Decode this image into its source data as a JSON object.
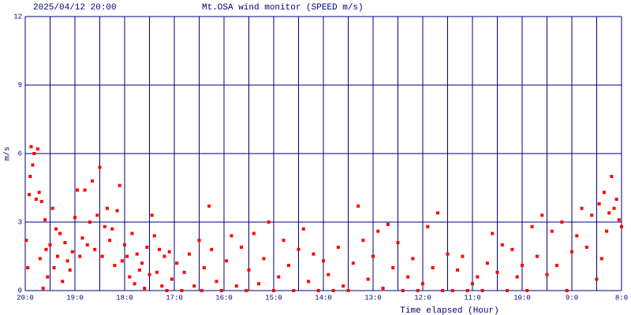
{
  "chart_data": {
    "type": "scatter",
    "timestamp": "2025/04/12 20:00",
    "title": "Mt.OSA wind monitor (SPEED m/s)",
    "y_label": "m/s",
    "x_label": "Time elapsed (Hour)",
    "color": "#ff0000",
    "grid": true,
    "xlim": [
      0,
      12
    ],
    "ylim": [
      0,
      12
    ],
    "yticks": [
      0,
      3,
      6,
      9,
      12
    ],
    "xticks": [
      {
        "value": 0,
        "label": "20:0"
      },
      {
        "value": 1,
        "label": "19:0"
      },
      {
        "value": 2,
        "label": "18:0"
      },
      {
        "value": 3,
        "label": "17:0"
      },
      {
        "value": 4,
        "label": "16:0"
      },
      {
        "value": 5,
        "label": "15:0"
      },
      {
        "value": 6,
        "label": "14:0"
      },
      {
        "value": 7,
        "label": "13:0"
      },
      {
        "value": 8,
        "label": "12:0"
      },
      {
        "value": 9,
        "label": "11:0"
      },
      {
        "value": 10,
        "label": "10:0"
      },
      {
        "value": 11,
        "label": "9:0"
      },
      {
        "value": 12,
        "label": "8:0"
      }
    ],
    "x_minor_ticks": [
      0.5,
      1.5,
      2.5,
      3.5,
      4.5,
      5.5,
      6.5,
      7.5,
      8.5,
      9.5,
      10.5,
      11.5
    ],
    "x": [
      0.02,
      0.05,
      0.08,
      0.1,
      0.12,
      0.15,
      0.18,
      0.22,
      0.25,
      0.28,
      0.3,
      0.33,
      0.36,
      0.4,
      0.42,
      0.45,
      0.5,
      0.55,
      0.58,
      0.62,
      0.65,
      0.7,
      0.75,
      0.8,
      0.85,
      0.9,
      0.95,
      1.0,
      1.05,
      1.1,
      1.15,
      1.2,
      1.25,
      1.3,
      1.35,
      1.4,
      1.45,
      1.5,
      1.55,
      1.6,
      1.65,
      1.7,
      1.75,
      1.8,
      1.85,
      1.9,
      1.95,
      2.0,
      2.05,
      2.1,
      2.15,
      2.2,
      2.25,
      2.3,
      2.35,
      2.4,
      2.45,
      2.5,
      2.55,
      2.6,
      2.65,
      2.7,
      2.75,
      2.8,
      2.85,
      2.9,
      2.95,
      3.05,
      3.15,
      3.2,
      3.3,
      3.4,
      3.5,
      3.55,
      3.6,
      3.7,
      3.75,
      3.85,
      3.95,
      4.05,
      4.15,
      4.25,
      4.35,
      4.45,
      4.5,
      4.6,
      4.7,
      4.8,
      4.9,
      5.0,
      5.1,
      5.2,
      5.3,
      5.4,
      5.5,
      5.6,
      5.7,
      5.8,
      5.9,
      6.0,
      6.1,
      6.2,
      6.3,
      6.4,
      6.5,
      6.6,
      6.7,
      6.8,
      6.9,
      7.0,
      7.1,
      7.2,
      7.3,
      7.4,
      7.5,
      7.6,
      7.7,
      7.8,
      7.9,
      8.0,
      8.1,
      8.2,
      8.3,
      8.4,
      8.5,
      8.6,
      8.7,
      8.8,
      8.9,
      9.0,
      9.1,
      9.2,
      9.3,
      9.4,
      9.5,
      9.6,
      9.7,
      9.8,
      9.9,
      10.0,
      10.1,
      10.2,
      10.3,
      10.4,
      10.5,
      10.6,
      10.7,
      10.8,
      10.9,
      11.0,
      11.1,
      11.2,
      11.3,
      11.4,
      11.5,
      11.55,
      11.6,
      11.65,
      11.7,
      11.75,
      11.8,
      11.85,
      11.9,
      11.95,
      12.0
    ],
    "values": [
      2.2,
      1.0,
      4.2,
      5.0,
      6.3,
      5.5,
      6.0,
      4.0,
      6.2,
      4.3,
      1.4,
      3.9,
      0.1,
      3.1,
      1.8,
      0.6,
      2.0,
      3.6,
      1.0,
      2.7,
      1.5,
      2.5,
      0.4,
      2.1,
      1.3,
      0.9,
      1.7,
      3.2,
      4.4,
      1.5,
      2.3,
      4.4,
      2.0,
      3.0,
      4.8,
      1.8,
      3.3,
      5.4,
      1.5,
      2.8,
      3.6,
      2.2,
      2.7,
      1.1,
      3.5,
      4.6,
      1.3,
      2.0,
      1.5,
      0.6,
      2.5,
      0.3,
      1.6,
      0.9,
      1.2,
      0.1,
      1.9,
      0.7,
      3.3,
      2.4,
      0.8,
      1.8,
      0.2,
      1.5,
      0.0,
      1.7,
      0.5,
      1.2,
      0.0,
      0.8,
      1.6,
      0.2,
      2.2,
      0.0,
      1.0,
      3.7,
      1.8,
      0.4,
      0.0,
      1.3,
      2.4,
      0.2,
      1.9,
      0.0,
      0.9,
      2.5,
      0.3,
      1.4,
      3.0,
      0.0,
      0.6,
      2.2,
      1.1,
      0.0,
      1.8,
      2.7,
      0.4,
      1.6,
      0.0,
      1.3,
      0.7,
      0.0,
      1.9,
      0.2,
      0.0,
      1.2,
      3.7,
      2.2,
      0.5,
      1.5,
      2.6,
      0.1,
      2.9,
      1.0,
      2.1,
      0.0,
      0.6,
      1.4,
      0.0,
      0.3,
      2.8,
      1.0,
      3.4,
      0.0,
      1.6,
      0.0,
      0.9,
      1.5,
      0.0,
      0.3,
      0.6,
      0.0,
      1.2,
      2.5,
      0.8,
      2.0,
      0.0,
      1.8,
      0.6,
      1.1,
      0.0,
      2.8,
      1.5,
      3.3,
      0.7,
      2.6,
      1.1,
      3.0,
      0.0,
      1.7,
      2.4,
      3.6,
      1.9,
      3.3,
      0.5,
      3.8,
      1.4,
      4.3,
      2.6,
      3.4,
      5.0,
      3.6,
      4.0,
      3.1,
      2.8
    ]
  }
}
